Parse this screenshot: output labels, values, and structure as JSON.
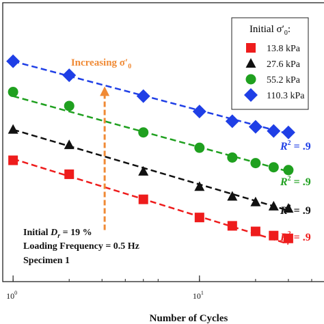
{
  "chart_data": {
    "type": "scatter",
    "title": "",
    "xlabel": "Number of Cycles",
    "ylabel": "",
    "x_scale": "log",
    "xlim": [
      0.88,
      60
    ],
    "ylim": [
      0,
      1
    ],
    "x_ticks": [
      {
        "value": 1,
        "base": "10",
        "exp": "0"
      },
      {
        "value": 10,
        "base": "10",
        "exp": "1"
      }
    ],
    "grid": false,
    "legend": {
      "title_prefix": "Initial ",
      "title_symbol": "σ′",
      "title_sub": "0",
      "title_suffix": ":",
      "placement": "top-right"
    },
    "series": [
      {
        "name": "13.8 kPa",
        "marker": "square",
        "color": "#ee1c1c",
        "x": [
          1,
          2,
          5,
          10,
          15,
          20,
          25,
          30
        ],
        "y": [
          0.435,
          0.385,
          0.295,
          0.23,
          0.2,
          0.18,
          0.165,
          0.155
        ],
        "fit": [
          0.44,
          0.135
        ],
        "r2_prefix": "R",
        "r2_suffix": " = .9"
      },
      {
        "name": "27.6 kPa",
        "marker": "triangle",
        "color": "#111111",
        "x": [
          1,
          2,
          5,
          10,
          15,
          20,
          25,
          30
        ],
        "y": [
          0.545,
          0.49,
          0.395,
          0.34,
          0.305,
          0.285,
          0.27,
          0.262
        ],
        "fit": [
          0.545,
          0.255
        ],
        "r2_prefix": "R",
        "r2_suffix": " = .9"
      },
      {
        "name": "55.2 kPa",
        "marker": "circle",
        "color": "#1fa01f",
        "x": [
          1,
          2,
          5,
          10,
          15,
          20,
          25,
          30
        ],
        "y": [
          0.68,
          0.63,
          0.535,
          0.48,
          0.445,
          0.425,
          0.41,
          0.4
        ],
        "fit": [
          0.665,
          0.395
        ],
        "r2_prefix": "R",
        "r2_suffix": " = .9"
      },
      {
        "name": "110.3 kPa",
        "marker": "diamond",
        "color": "#1f3fe6",
        "x": [
          1,
          2,
          5,
          10,
          15,
          20,
          25,
          30
        ],
        "y": [
          0.79,
          0.74,
          0.665,
          0.61,
          0.575,
          0.555,
          0.54,
          0.535
        ],
        "fit": [
          0.79,
          0.53
        ],
        "r2_prefix": "R",
        "r2_suffix": " = .9"
      }
    ],
    "annotations": {
      "arrow_label_prefix": "Increasing ",
      "arrow_label_symbol": "σ′",
      "arrow_label_sub": "0",
      "arrow_color": "#f08a35",
      "arrow_x": 3.1,
      "arrow_y_from": 0.185,
      "arrow_y_to": 0.7,
      "info_line1_prefix": "Initial ",
      "info_line1_var": "D",
      "info_line1_sub": "r",
      "info_line1_suffix": " = 19 %",
      "info_line2": "Loading Frequency = 0.5 Hz",
      "info_line3": "Specimen 1"
    }
  }
}
